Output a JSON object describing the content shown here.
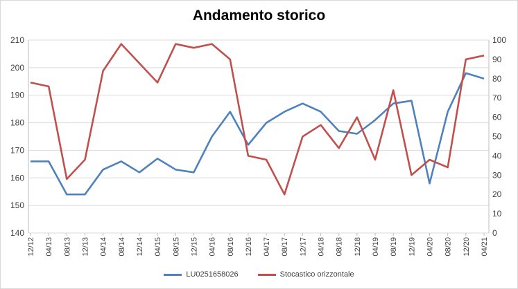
{
  "chart_data": {
    "type": "line",
    "title": "Andamento storico",
    "x": [
      "12/12",
      "04/13",
      "08/13",
      "12/13",
      "04/14",
      "08/14",
      "12/14",
      "04/15",
      "08/15",
      "12/15",
      "04/16",
      "08/16",
      "12/16",
      "04/17",
      "08/17",
      "12/17",
      "04/18",
      "08/18",
      "12/18",
      "04/19",
      "08/19",
      "12/19",
      "04/20",
      "08/20",
      "12/20",
      "04/21"
    ],
    "ylim_left": [
      140,
      210
    ],
    "yticks_left": [
      140,
      150,
      160,
      170,
      180,
      190,
      200,
      210
    ],
    "ylim_right": [
      0,
      100
    ],
    "yticks_right": [
      0,
      10,
      20,
      30,
      40,
      50,
      60,
      70,
      80,
      90,
      100
    ],
    "grid": true,
    "legend_position": "bottom",
    "series": [
      {
        "name": "LU0251658026",
        "axis": "left",
        "color": "#4f81bd",
        "values": [
          166,
          166,
          154,
          154,
          163,
          166,
          162,
          167,
          163,
          162,
          175,
          184,
          172,
          180,
          184,
          187,
          184,
          177,
          176,
          181,
          187,
          188,
          158,
          184,
          198,
          196
        ]
      },
      {
        "name": "Stocastico orizzontale",
        "axis": "right",
        "color": "#c0504d",
        "values": [
          78,
          76,
          28,
          38,
          84,
          98,
          88,
          78,
          98,
          96,
          98,
          90,
          40,
          38,
          20,
          50,
          56,
          44,
          60,
          38,
          74,
          30,
          38,
          34,
          90,
          92
        ]
      }
    ]
  }
}
